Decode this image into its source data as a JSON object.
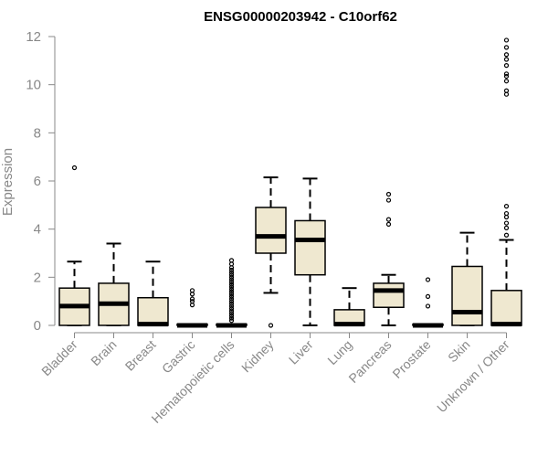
{
  "chart_data": {
    "type": "boxplot",
    "title": "ENSG00000203942 - C10orf62",
    "ylabel": "Expression",
    "xlabel": "",
    "ylim": [
      0,
      12
    ],
    "yticks": [
      0,
      2,
      4,
      6,
      8,
      10,
      12
    ],
    "grid": false,
    "box_fill": "#efe8d0",
    "box_stroke": "#000000",
    "axis_color": "#888888",
    "categories": [
      "Bladder",
      "Brain",
      "Breast",
      "Gastric",
      "Hematopoietic cells",
      "Kidney",
      "Liver",
      "Lung",
      "Pancreas",
      "Prostate",
      "Skin",
      "Unknown / Other"
    ],
    "boxes": [
      {
        "whisker_low": 0,
        "q1": 0,
        "median": 0.8,
        "q3": 1.55,
        "whisker_high": 2.65,
        "outliers": [
          6.55
        ]
      },
      {
        "whisker_low": 0,
        "q1": 0,
        "median": 0.9,
        "q3": 1.75,
        "whisker_high": 3.4,
        "outliers": []
      },
      {
        "whisker_low": 0,
        "q1": 0,
        "median": 0.05,
        "q3": 1.15,
        "whisker_high": 2.65,
        "outliers": []
      },
      {
        "whisker_low": 0,
        "q1": 0,
        "median": 0,
        "q3": 0.05,
        "whisker_high": 0.05,
        "outliers": [
          0.85,
          1.0,
          1.1,
          1.3,
          1.45
        ]
      },
      {
        "whisker_low": 0,
        "q1": 0,
        "median": 0,
        "q3": 0.05,
        "whisker_high": 0.05,
        "outliers": [
          0.2,
          0.3,
          0.4,
          0.5,
          0.6,
          0.7,
          0.8,
          0.9,
          1.0,
          1.1,
          1.2,
          1.3,
          1.4,
          1.5,
          1.6,
          1.7,
          1.8,
          1.9,
          2.0,
          2.1,
          2.2,
          2.3,
          2.4,
          2.55,
          2.7
        ]
      },
      {
        "whisker_low": 1.35,
        "q1": 3.0,
        "median": 3.7,
        "q3": 4.9,
        "whisker_high": 6.15,
        "outliers": [
          0
        ]
      },
      {
        "whisker_low": 0,
        "q1": 2.1,
        "median": 3.55,
        "q3": 4.35,
        "whisker_high": 6.1,
        "outliers": []
      },
      {
        "whisker_low": 0,
        "q1": 0,
        "median": 0.05,
        "q3": 0.65,
        "whisker_high": 1.55,
        "outliers": []
      },
      {
        "whisker_low": 0,
        "q1": 0.75,
        "median": 1.45,
        "q3": 1.75,
        "whisker_high": 2.1,
        "outliers": [
          4.2,
          4.4,
          5.2,
          5.45
        ]
      },
      {
        "whisker_low": 0,
        "q1": 0,
        "median": 0,
        "q3": 0.05,
        "whisker_high": 0.05,
        "outliers": [
          0.8,
          1.2,
          1.9
        ]
      },
      {
        "whisker_low": 0,
        "q1": 0,
        "median": 0.55,
        "q3": 2.45,
        "whisker_high": 3.85,
        "outliers": []
      },
      {
        "whisker_low": 0,
        "q1": 0,
        "median": 0.05,
        "q3": 1.45,
        "whisker_high": 3.55,
        "outliers": [
          3.75,
          4.05,
          4.25,
          4.5,
          4.65,
          4.95,
          9.6,
          9.75,
          10.15,
          10.35,
          10.45,
          10.8,
          11.05,
          11.25,
          11.55,
          11.85
        ]
      }
    ]
  }
}
